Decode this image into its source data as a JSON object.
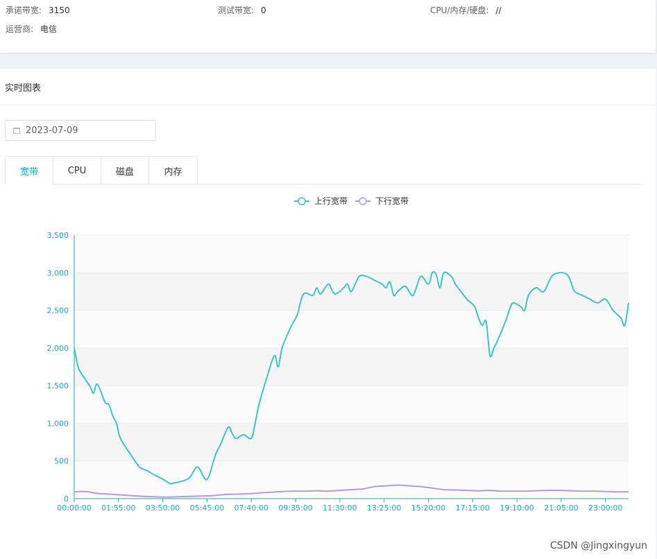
{
  "summary": {
    "committed_bandwidth": {
      "label": "承诺带宽:",
      "value": "3150"
    },
    "test_bandwidth": {
      "label": "测试带宽:",
      "value": "0"
    },
    "cpu_mem_disk": {
      "label": "CPU/内存/硬盘:",
      "value": "//"
    },
    "carrier": {
      "label": "运营商:",
      "value": "电信"
    }
  },
  "panel": {
    "title": "实时图表"
  },
  "date_picker": {
    "value": "2023-07-09",
    "icon": "calendar-icon"
  },
  "tabs": [
    {
      "label": "宽带",
      "active": true
    },
    {
      "label": "CPU",
      "active": false
    },
    {
      "label": "磁盘",
      "active": false
    },
    {
      "label": "内存",
      "active": false
    }
  ],
  "watermark": "CSDN @Jingxingyun",
  "colors": {
    "accent": "#1aa3c9",
    "upload": "#3cc3c3",
    "download": "#b19dd3",
    "axis": "#1aa3c9"
  },
  "chart_data": {
    "type": "line",
    "title": "",
    "xlabel": "",
    "ylabel": "",
    "legend_position": "top",
    "ylim": [
      0,
      3500
    ],
    "y_ticks": [
      0,
      500,
      1000,
      1500,
      2000,
      2500,
      3000,
      3500
    ],
    "y_tick_labels": [
      "0",
      "500",
      "1,000",
      "1,500",
      "2,000",
      "2,500",
      "3,000",
      "3,500"
    ],
    "x_ticks": [
      0,
      115,
      230,
      345,
      460,
      575,
      690,
      805,
      920,
      1035,
      1150,
      1265,
      1380
    ],
    "x_tick_labels": [
      "00:00:00",
      "01:55:00",
      "03:50:00",
      "05:45:00",
      "07:40:00",
      "09:35:00",
      "11:30:00",
      "13:25:00",
      "15:20:00",
      "17:15:00",
      "19:10:00",
      "21:05:00",
      "23:00:00"
    ],
    "x_range": [
      0,
      1440
    ],
    "x_unit": "minutes",
    "series": [
      {
        "name": "上行宽带",
        "x": [
          0,
          10,
          20,
          40,
          50,
          60,
          80,
          90,
          100,
          110,
          120,
          150,
          170,
          190,
          210,
          230,
          250,
          260,
          270,
          285,
          300,
          320,
          340,
          350,
          360,
          370,
          380,
          400,
          410,
          420,
          440,
          460,
          470,
          480,
          500,
          520,
          530,
          540,
          560,
          570,
          580,
          590,
          600,
          620,
          630,
          640,
          660,
          670,
          680,
          700,
          710,
          720,
          740,
          760,
          780,
          800,
          810,
          820,
          830,
          840,
          860,
          880,
          900,
          920,
          930,
          940,
          950,
          960,
          980,
          990,
          1000,
          1020,
          1040,
          1050,
          1060,
          1070,
          1080,
          1090,
          1100,
          1120,
          1130,
          1140,
          1160,
          1170,
          1180,
          1200,
          1220,
          1240,
          1260,
          1280,
          1290,
          1300,
          1320,
          1340,
          1360,
          1380,
          1400,
          1420,
          1430,
          1440
        ],
        "values": [
          2000,
          1750,
          1650,
          1500,
          1400,
          1520,
          1280,
          1250,
          1100,
          1000,
          800,
          560,
          420,
          370,
          310,
          260,
          200,
          210,
          220,
          240,
          280,
          420,
          260,
          300,
          470,
          620,
          720,
          950,
          870,
          800,
          850,
          800,
          1000,
          1250,
          1600,
          1900,
          1750,
          2000,
          2250,
          2350,
          2450,
          2650,
          2730,
          2700,
          2800,
          2720,
          2850,
          2760,
          2720,
          2800,
          2850,
          2750,
          2950,
          2950,
          2900,
          2850,
          2800,
          2880,
          2700,
          2750,
          2820,
          2700,
          2950,
          2850,
          3000,
          2980,
          2800,
          3000,
          2950,
          2850,
          2780,
          2650,
          2550,
          2400,
          2300,
          2350,
          1900,
          2000,
          2100,
          2350,
          2500,
          2600,
          2550,
          2500,
          2700,
          2800,
          2750,
          2950,
          3000,
          2980,
          2880,
          2750,
          2700,
          2650,
          2600,
          2650,
          2500,
          2400,
          2300,
          2600
        ]
      },
      {
        "name": "下行宽带",
        "x": [
          0,
          30,
          60,
          90,
          120,
          150,
          180,
          210,
          240,
          270,
          300,
          330,
          360,
          390,
          420,
          450,
          480,
          510,
          540,
          570,
          600,
          630,
          660,
          690,
          720,
          750,
          780,
          810,
          840,
          870,
          900,
          930,
          960,
          990,
          1020,
          1050,
          1080,
          1110,
          1140,
          1170,
          1200,
          1230,
          1260,
          1290,
          1320,
          1350,
          1380,
          1410,
          1440
        ],
        "values": [
          90,
          95,
          70,
          60,
          50,
          40,
          30,
          25,
          20,
          25,
          30,
          35,
          40,
          55,
          60,
          65,
          75,
          85,
          95,
          100,
          100,
          105,
          100,
          110,
          120,
          130,
          160,
          170,
          180,
          170,
          160,
          140,
          120,
          115,
          110,
          105,
          110,
          100,
          100,
          100,
          105,
          110,
          110,
          105,
          100,
          100,
          95,
          90,
          90
        ]
      }
    ]
  }
}
